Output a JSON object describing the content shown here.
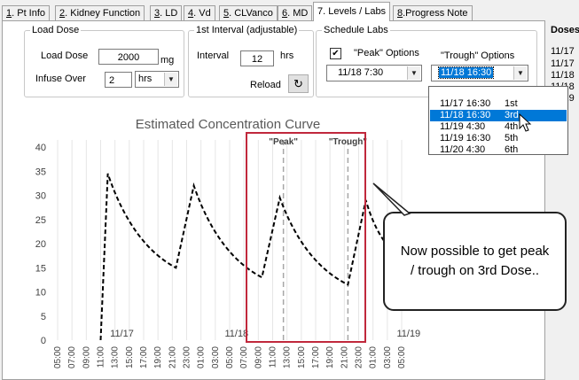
{
  "tabs": [
    {
      "prefix": "1",
      "label": ". Pt Info"
    },
    {
      "prefix": "2",
      "label": ". Kidney Function"
    },
    {
      "prefix": "3",
      "label": ". LD"
    },
    {
      "prefix": "4",
      "label": ". Vd"
    },
    {
      "prefix": "5",
      "label": ". CLVanco"
    },
    {
      "prefix": "6",
      "label": ". MD"
    },
    {
      "prefix": "7",
      "label": ". Levels / Labs"
    },
    {
      "prefix": "8",
      "label": ".Progress Note"
    }
  ],
  "load_dose": {
    "legend": "Load Dose",
    "dose_label": "Load Dose",
    "dose_value": "2000",
    "dose_unit": "mg",
    "infuse_label": "Infuse Over",
    "infuse_value": "2",
    "infuse_unit": "hrs"
  },
  "interval": {
    "legend": "1st Interval (adjustable)",
    "label": "Interval",
    "value": "12",
    "unit": "hrs",
    "reload_label": "Reload"
  },
  "schedule": {
    "legend": "Schedule Labs",
    "peak_checked": true,
    "peak_label": "\"Peak\" Options",
    "trough_label": "\"Trough\" Options",
    "peak_value": "11/18 7:30",
    "trough_value": "11/18 16:30"
  },
  "dropdown_options": [
    {
      "date": "11/17 16:30",
      "ord": "1st",
      "selected": false
    },
    {
      "date": "11/18 16:30",
      "ord": "3rd",
      "selected": true
    },
    {
      "date": "11/19 4:30",
      "ord": "4th",
      "selected": false
    },
    {
      "date": "11/19 16:30",
      "ord": "5th",
      "selected": false
    },
    {
      "date": "11/20 4:30",
      "ord": "6th",
      "selected": false
    }
  ],
  "doses_panel": {
    "title": "Doses",
    "items": [
      "11/17",
      "11/17",
      "11/18",
      "11/18",
      "11/19"
    ]
  },
  "chart_data": {
    "type": "line",
    "title": "Estimated Concentration Curve",
    "ylim": [
      0,
      40
    ],
    "yticks": [
      0,
      5,
      10,
      15,
      20,
      25,
      30,
      35,
      40
    ],
    "xticks": [
      "05:00",
      "07:00",
      "09:00",
      "11:00",
      "13:00",
      "15:00",
      "17:00",
      "19:00",
      "21:00",
      "23:00",
      "01:00",
      "03:00",
      "05:00",
      "07:00",
      "09:00",
      "11:00",
      "13:00",
      "15:00",
      "17:00",
      "19:00",
      "21:00",
      "23:00",
      "01:00",
      "03:00",
      "05:00"
    ],
    "day_labels": [
      {
        "text": "11/17",
        "hour": 6
      },
      {
        "text": "11/18",
        "hour": 22
      },
      {
        "text": "11/19",
        "hour": 46
      }
    ],
    "grid": "vertical",
    "series": [
      {
        "values_x": [
          6,
          7,
          16.5,
          19,
          28.5,
          31,
          40.5,
          43,
          48
        ],
        "values_y": [
          0,
          34.5,
          15,
          32,
          13,
          29.5,
          11.5,
          29,
          17
        ]
      }
    ],
    "markers": [
      {
        "text": "\"Peak\"",
        "hour": 31.5
      },
      {
        "text": "\"Trough\"",
        "hour": 40.5
      }
    ]
  },
  "callout": {
    "text": "Now possible to get peak / trough on 3rd Dose.."
  },
  "colors": {
    "highlight_box": "#c0283c",
    "selection": "#0078d7"
  }
}
